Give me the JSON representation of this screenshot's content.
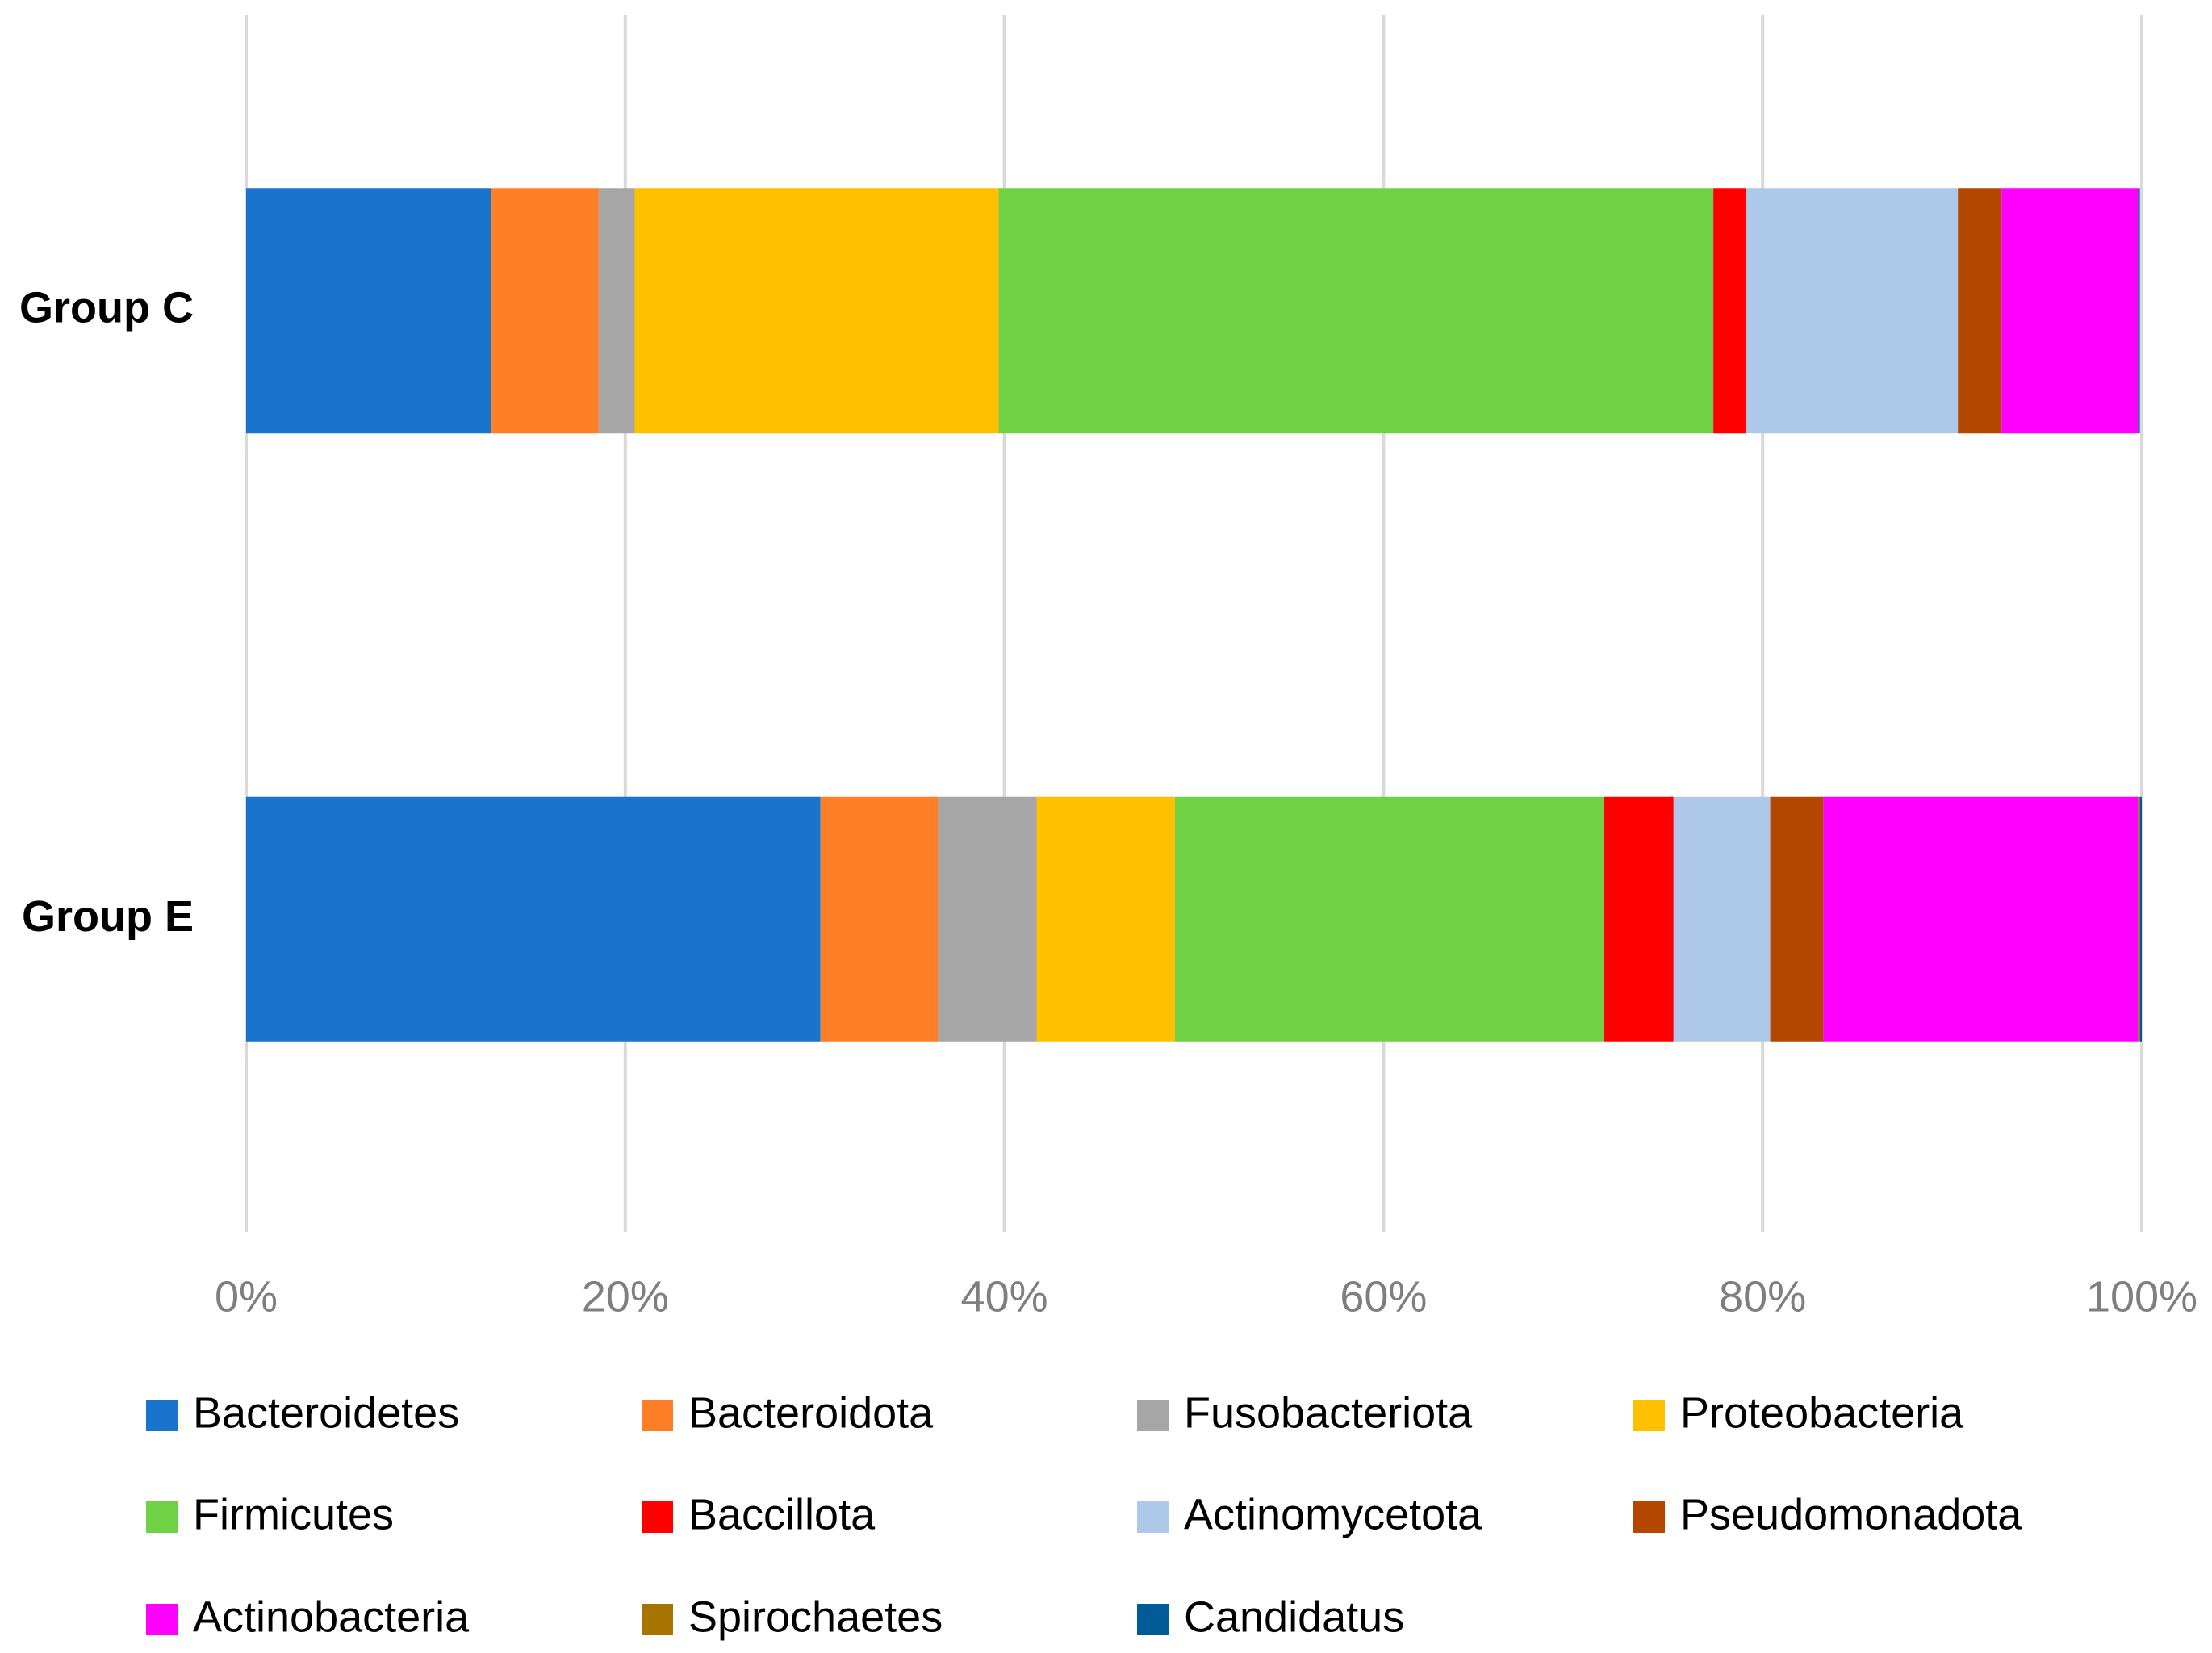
{
  "chart_data": {
    "type": "bar",
    "orientation": "horizontal",
    "stacked": true,
    "categories": [
      "Group C",
      "Group E"
    ],
    "series": [
      {
        "name": "Bacteroidetes",
        "color": "#1874cd",
        "values": [
          12.9,
          30.3
        ]
      },
      {
        "name": "Bacteroidota",
        "color": "#fe7f27",
        "values": [
          5.7,
          6.2
        ]
      },
      {
        "name": "Fusobacteriota",
        "color": "#a6a6a6",
        "values": [
          1.9,
          5.2
        ]
      },
      {
        "name": "Proteobacteria",
        "color": "#ffc000",
        "values": [
          19.2,
          7.3
        ]
      },
      {
        "name": "Firmicutes",
        "color": "#6fd244",
        "values": [
          37.7,
          22.6
        ]
      },
      {
        "name": "Baccillota",
        "color": "#ff0000",
        "values": [
          1.7,
          3.7
        ]
      },
      {
        "name": "Actinomycetota",
        "color": "#adc8e8",
        "values": [
          11.2,
          5.1
        ]
      },
      {
        "name": "Pseudomonadota",
        "color": "#b34700",
        "values": [
          2.3,
          2.8
        ]
      },
      {
        "name": "Actinobacteria",
        "color": "#ff00ff",
        "values": [
          7.2,
          16.6
        ]
      },
      {
        "name": "Spirochaetes",
        "color": "#a87400",
        "values": [
          0,
          0.1
        ]
      },
      {
        "name": "Candidatus",
        "color": "#005b96",
        "values": [
          0.1,
          0.1
        ]
      }
    ],
    "xlim": [
      0,
      100
    ],
    "xticks": [
      {
        "value": 0,
        "label": "0%"
      },
      {
        "value": 20,
        "label": "20%"
      },
      {
        "value": 40,
        "label": "40%"
      },
      {
        "value": 60,
        "label": "60%"
      },
      {
        "value": 80,
        "label": "80%"
      },
      {
        "value": 100,
        "label": "100%"
      }
    ],
    "grid": true,
    "legend": "bottom"
  }
}
